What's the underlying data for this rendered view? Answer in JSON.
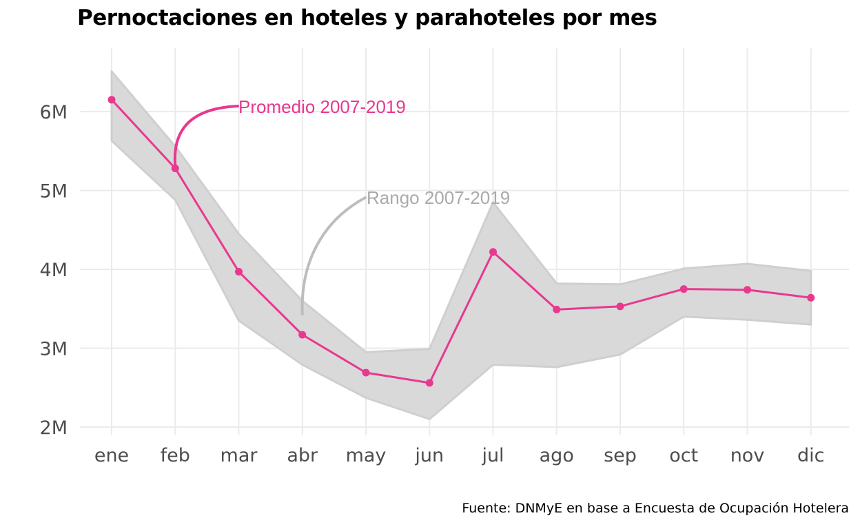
{
  "chart_data": {
    "type": "line",
    "title": "Pernoctaciones en hoteles y parahoteles por mes",
    "xlabel": "",
    "ylabel": "",
    "categories": [
      "ene",
      "feb",
      "mar",
      "abr",
      "may",
      "jun",
      "jul",
      "ago",
      "sep",
      "oct",
      "nov",
      "dic"
    ],
    "y_ticks": [
      2000000,
      3000000,
      4000000,
      5000000,
      6000000
    ],
    "y_tick_labels": [
      "2M",
      "3M",
      "4M",
      "5M",
      "6M"
    ],
    "ylim": [
      1950000,
      6700000
    ],
    "grid": true,
    "series": [
      {
        "name": "Promedio 2007-2019",
        "color": "#e8388f",
        "values": [
          6150000,
          5280000,
          3970000,
          3170000,
          2690000,
          2560000,
          4220000,
          3490000,
          3530000,
          3750000,
          3740000,
          3640000
        ]
      }
    ],
    "range": {
      "name": "Rango 2007-2019",
      "color": "#d9d9d9",
      "min": [
        5630000,
        4880000,
        3350000,
        2790000,
        2370000,
        2100000,
        2790000,
        2760000,
        2920000,
        3400000,
        3360000,
        3300000
      ],
      "max": [
        6510000,
        5560000,
        4450000,
        3600000,
        2950000,
        2990000,
        4850000,
        3820000,
        3810000,
        4010000,
        4070000,
        3980000
      ]
    },
    "annotations": [
      {
        "text": "Promedio 2007-2019",
        "color": "#e8388f",
        "points_to": "feb"
      },
      {
        "text": "Rango 2007-2019",
        "color": "#aaaaaa",
        "points_to": "abr"
      }
    ],
    "source": "Fuente: DNMyE en base a Encuesta de Ocupación Hotelera"
  }
}
